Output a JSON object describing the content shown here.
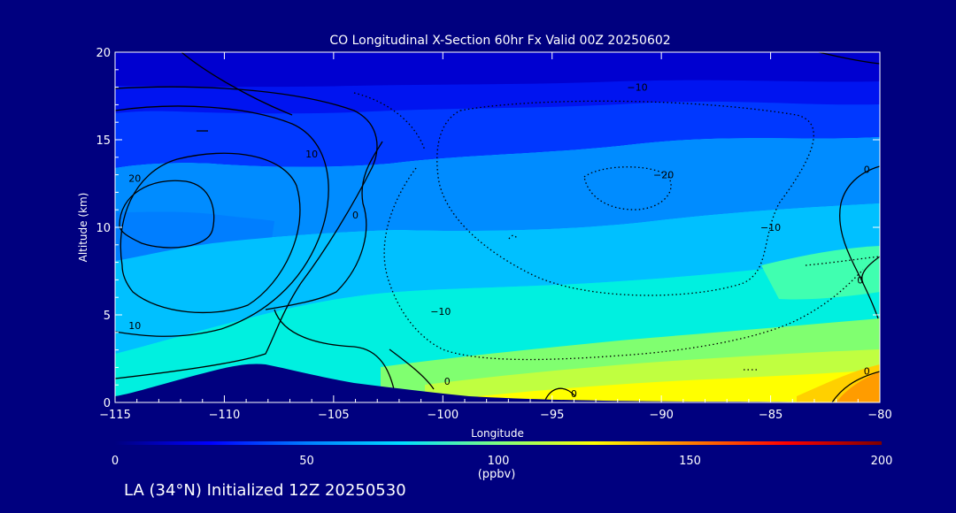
{
  "chart_data": {
    "type": "heatmap",
    "title": "CO Longitudinal X-Section 60hr  Fx Valid 00Z 20250602",
    "xlabel": "Longitude",
    "ylabel": "Altitude (km)",
    "xlim": [
      -115,
      -80
    ],
    "ylim": [
      0,
      20
    ],
    "xticks": [
      -115,
      -110,
      -105,
      -100,
      -95,
      -90,
      -85,
      -80
    ],
    "xtick_labels": [
      "−115",
      "−110",
      "−105",
      "−100",
      "−95",
      "−90",
      "−85",
      "−80"
    ],
    "yticks": [
      0,
      5,
      10,
      15,
      20
    ],
    "ytick_labels": [
      "0",
      "5",
      "10",
      "15",
      "20"
    ],
    "colorbar": {
      "range": [
        0,
        200
      ],
      "ticks": [
        0,
        50,
        100,
        150,
        200
      ],
      "tick_labels": [
        "0",
        "50",
        "100",
        "150",
        "200"
      ],
      "unit": "(ppbv)",
      "colors": [
        "#00007f",
        "#0000ff",
        "#007fff",
        "#00dfff",
        "#7fff7f",
        "#ffff00",
        "#ff7f00",
        "#ff0000",
        "#7f0000"
      ]
    },
    "contour_labels": [
      {
        "text": "20",
        "lon": -114.1,
        "alt": 12.8
      },
      {
        "text": "10",
        "lon": -106.0,
        "alt": 14.2
      },
      {
        "text": "10",
        "lon": -114.1,
        "alt": 4.4
      },
      {
        "text": "0",
        "lon": -104.0,
        "alt": 10.7
      },
      {
        "text": "−10",
        "lon": -100.1,
        "alt": 5.2
      },
      {
        "text": "−10",
        "lon": -91.1,
        "alt": 18.0
      },
      {
        "text": "−20",
        "lon": -89.9,
        "alt": 13.0
      },
      {
        "text": "−10",
        "lon": -85.0,
        "alt": 10.0
      },
      {
        "text": "0",
        "lon": -80.6,
        "alt": 13.3
      },
      {
        "text": "0",
        "lon": -80.9,
        "alt": 7.0
      },
      {
        "text": "0",
        "lon": -80.6,
        "alt": 1.8
      },
      {
        "text": "0",
        "lon": -99.8,
        "alt": 1.2
      },
      {
        "text": "0",
        "lon": -94.0,
        "alt": 0.5
      }
    ]
  },
  "footer": {
    "init_text": "LA (34°N) Initialized 12Z 20250530"
  }
}
